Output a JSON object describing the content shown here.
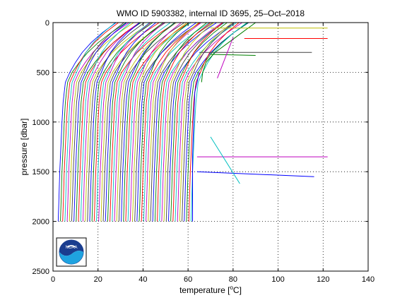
{
  "chart_data": {
    "type": "line",
    "title": "WMO ID 5903382, internal ID 3695, 25–Oct–2018",
    "xlabel_pre": "temperature [",
    "xlabel_sup": "o",
    "xlabel_post": "C]",
    "ylabel": "pressure [dbar]",
    "xlim": [
      0,
      140
    ],
    "ylim": [
      2500,
      0
    ],
    "y_reversed": true,
    "grid": true,
    "grid_style": "dotted",
    "x_ticks": [
      0,
      20,
      40,
      60,
      80,
      100,
      120,
      140
    ],
    "x_tick_labels": [
      "0",
      "20",
      "40",
      "60",
      "80",
      "100",
      "120",
      "140"
    ],
    "y_ticks": [
      0,
      500,
      1000,
      1500,
      2000,
      2500
    ],
    "y_tick_labels": [
      "0",
      "500",
      "1000",
      "1500",
      "2000",
      "2500"
    ],
    "profile_family": {
      "description_note": "",
      "count": 60,
      "offset_start": 0,
      "offset_step": 1,
      "shape": {
        "pressure": [
          0,
          100,
          200,
          300,
          400,
          500,
          600,
          800,
          1000,
          1200,
          1500,
          1800,
          2000
        ],
        "temperature": [
          28,
          22,
          17,
          13,
          10,
          7.5,
          5.5,
          4.5,
          4.0,
          3.6,
          3.0,
          2.6,
          2.3
        ]
      }
    },
    "outlier_series": [
      {
        "pressure": [
          600,
          500,
          400,
          300,
          200,
          100,
          0
        ],
        "temperature": [
          66,
          66.5,
          68,
          72,
          78,
          84,
          90
        ]
      },
      {
        "pressure": [
          1350,
          1350
        ],
        "temperature": [
          64,
          122
        ]
      },
      {
        "pressure": [
          1500,
          1550
        ],
        "temperature": [
          64,
          116
        ]
      },
      {
        "pressure": [
          1150,
          1620
        ],
        "temperature": [
          70,
          83
        ]
      },
      {
        "pressure": [
          300,
          300
        ],
        "temperature": [
          65,
          115
        ]
      },
      {
        "pressure": [
          160,
          160
        ],
        "temperature": [
          85,
          122
        ]
      },
      {
        "pressure": [
          55,
          55
        ],
        "temperature": [
          70,
          122
        ]
      },
      {
        "pressure": [
          320,
          330
        ],
        "temperature": [
          70,
          90
        ]
      },
      {
        "pressure": [
          560,
          150
        ],
        "temperature": [
          73,
          80
        ]
      },
      {
        "pressure": [
          2000,
          1350,
          1000,
          700,
          500
        ],
        "temperature": [
          62,
          62,
          62.5,
          63,
          65
        ]
      }
    ],
    "palette": [
      "#0000ff",
      "#008000",
      "#ff0000",
      "#00bfbf",
      "#bf00bf",
      "#bfbf00",
      "#404040"
    ]
  },
  "logo": {
    "name": "noaa-logo",
    "text": "NOAA"
  }
}
